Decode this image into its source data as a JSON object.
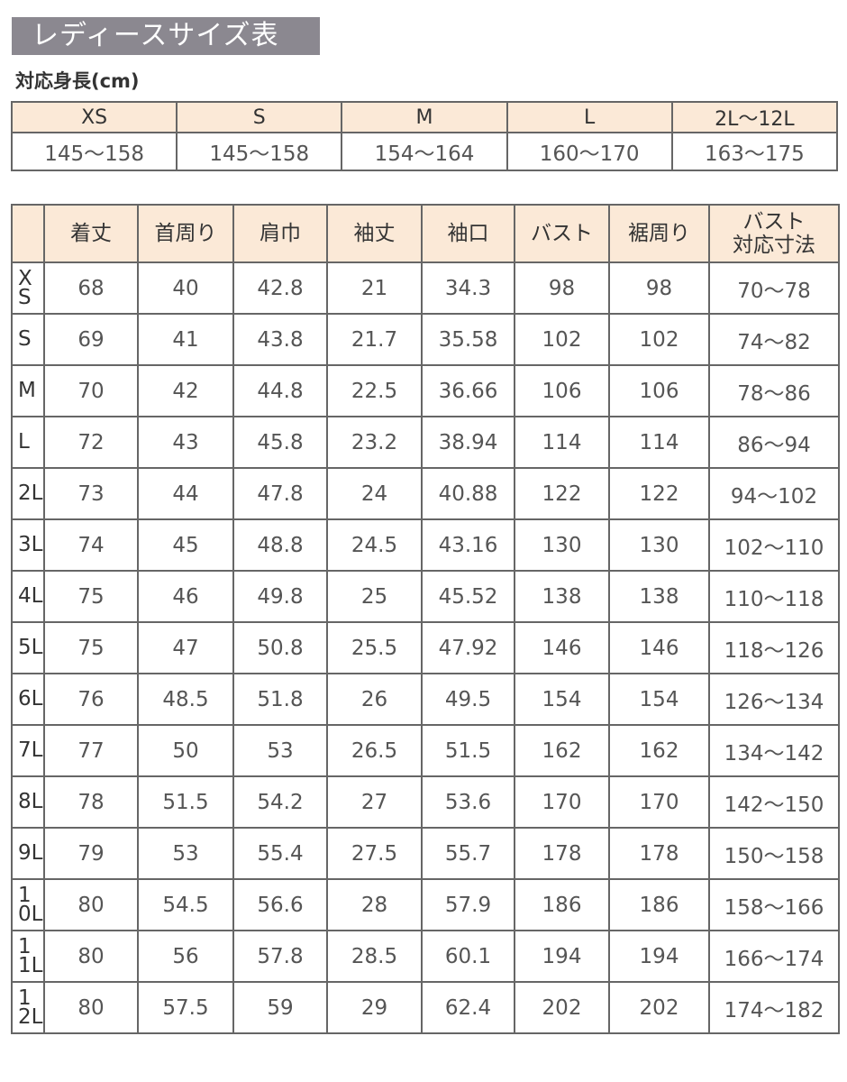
{
  "title": "レディースサイズ表",
  "height_section": {
    "label": "対応身長(cm)",
    "sizes": [
      "XS",
      "S",
      "M",
      "L",
      "2L〜12L"
    ],
    "ranges": [
      "145〜158",
      "145〜158",
      "154〜164",
      "160〜170",
      "163〜175"
    ]
  },
  "size_table": {
    "headers": [
      "",
      "着丈",
      "首周り",
      "肩巾",
      "袖丈",
      "袖口",
      "バスト",
      "裾周り",
      "バスト\n対応寸法"
    ],
    "rows": [
      [
        "XS",
        "68",
        "40",
        "42.8",
        "21",
        "34.3",
        "98",
        "98",
        "70〜78"
      ],
      [
        "S",
        "69",
        "41",
        "43.8",
        "21.7",
        "35.58",
        "102",
        "102",
        "74〜82"
      ],
      [
        "M",
        "70",
        "42",
        "44.8",
        "22.5",
        "36.66",
        "106",
        "106",
        "78〜86"
      ],
      [
        "L",
        "72",
        "43",
        "45.8",
        "23.2",
        "38.94",
        "114",
        "114",
        "86〜94"
      ],
      [
        "2L",
        "73",
        "44",
        "47.8",
        "24",
        "40.88",
        "122",
        "122",
        "94〜102"
      ],
      [
        "3L",
        "74",
        "45",
        "48.8",
        "24.5",
        "43.16",
        "130",
        "130",
        "102〜110"
      ],
      [
        "4L",
        "75",
        "46",
        "49.8",
        "25",
        "45.52",
        "138",
        "138",
        "110〜118"
      ],
      [
        "5L",
        "75",
        "47",
        "50.8",
        "25.5",
        "47.92",
        "146",
        "146",
        "118〜126"
      ],
      [
        "6L",
        "76",
        "48.5",
        "51.8",
        "26",
        "49.5",
        "154",
        "154",
        "126〜134"
      ],
      [
        "7L",
        "77",
        "50",
        "53",
        "26.5",
        "51.5",
        "162",
        "162",
        "134〜142"
      ],
      [
        "8L",
        "78",
        "51.5",
        "54.2",
        "27",
        "53.6",
        "170",
        "170",
        "142〜150"
      ],
      [
        "9L",
        "79",
        "53",
        "55.4",
        "27.5",
        "55.7",
        "178",
        "178",
        "150〜158"
      ],
      [
        "10L",
        "80",
        "54.5",
        "56.6",
        "28",
        "57.9",
        "186",
        "186",
        "158〜166"
      ],
      [
        "11L",
        "80",
        "56",
        "57.8",
        "28.5",
        "60.1",
        "194",
        "194",
        "166〜174"
      ],
      [
        "12L",
        "80",
        "57.5",
        "59",
        "29",
        "62.4",
        "202",
        "202",
        "174〜182"
      ]
    ]
  },
  "colors": {
    "title_bg": "#8b8890",
    "header_bg": "#fbe9d7",
    "border": "#666666"
  }
}
